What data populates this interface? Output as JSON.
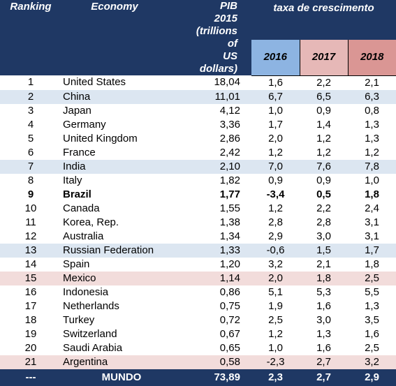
{
  "header": {
    "ranking": "Ranking",
    "economy": "Economy",
    "pib_line1": "PIB 2015",
    "pib_line2": "(trillions of",
    "pib_line3": "US dollars)",
    "growth": "taxa de crescimento",
    "years": [
      "2016",
      "2017",
      "2018"
    ]
  },
  "colors": {
    "header_bg": "#1f3864",
    "y2016": "#8db4e2",
    "y2017": "#e6b8b7",
    "y2018": "#da9694",
    "row_blue": "#dce6f1",
    "row_pink": "#f2dcdb"
  },
  "rows": [
    {
      "rank": "1",
      "economy": "United States",
      "pib": "18,04",
      "g2016": "1,6",
      "g2017": "2,2",
      "g2018": "2,1",
      "style": ""
    },
    {
      "rank": "2",
      "economy": "China",
      "pib": "11,01",
      "g2016": "6,7",
      "g2017": "6,5",
      "g2018": "6,3",
      "style": "blue"
    },
    {
      "rank": "3",
      "economy": "Japan",
      "pib": "4,12",
      "g2016": "1,0",
      "g2017": "0,9",
      "g2018": "0,8",
      "style": ""
    },
    {
      "rank": "4",
      "economy": "Germany",
      "pib": "3,36",
      "g2016": "1,7",
      "g2017": "1,4",
      "g2018": "1,3",
      "style": ""
    },
    {
      "rank": "5",
      "economy": "United Kingdom",
      "pib": "2,86",
      "g2016": "2,0",
      "g2017": "1,2",
      "g2018": "1,3",
      "style": ""
    },
    {
      "rank": "6",
      "economy": "France",
      "pib": "2,42",
      "g2016": "1,2",
      "g2017": "1,2",
      "g2018": "1,2",
      "style": ""
    },
    {
      "rank": "7",
      "economy": "India",
      "pib": "2,10",
      "g2016": "7,0",
      "g2017": "7,6",
      "g2018": "7,8",
      "style": "blue"
    },
    {
      "rank": "8",
      "economy": "Italy",
      "pib": "1,82",
      "g2016": "0,9",
      "g2017": "0,9",
      "g2018": "1,0",
      "style": ""
    },
    {
      "rank": "9",
      "economy": "Brazil",
      "pib": "1,77",
      "g2016": "-3,4",
      "g2017": "0,5",
      "g2018": "1,8",
      "style": "bold"
    },
    {
      "rank": "10",
      "economy": "Canada",
      "pib": "1,55",
      "g2016": "1,2",
      "g2017": "2,2",
      "g2018": "2,4",
      "style": ""
    },
    {
      "rank": "11",
      "economy": "Korea, Rep.",
      "pib": "1,38",
      "g2016": "2,8",
      "g2017": "2,8",
      "g2018": "3,1",
      "style": ""
    },
    {
      "rank": "12",
      "economy": "Australia",
      "pib": "1,34",
      "g2016": "2,9",
      "g2017": "3,0",
      "g2018": "3,1",
      "style": ""
    },
    {
      "rank": "13",
      "economy": "Russian Federation",
      "pib": "1,33",
      "g2016": "-0,6",
      "g2017": "1,5",
      "g2018": "1,7",
      "style": "blue"
    },
    {
      "rank": "14",
      "economy": "Spain",
      "pib": "1,20",
      "g2016": "3,2",
      "g2017": "2,1",
      "g2018": "1,8",
      "style": ""
    },
    {
      "rank": "15",
      "economy": "Mexico",
      "pib": "1,14",
      "g2016": "2,0",
      "g2017": "1,8",
      "g2018": "2,5",
      "style": "pink"
    },
    {
      "rank": "16",
      "economy": "Indonesia",
      "pib": "0,86",
      "g2016": "5,1",
      "g2017": "5,3",
      "g2018": "5,5",
      "style": ""
    },
    {
      "rank": "17",
      "economy": "Netherlands",
      "pib": "0,75",
      "g2016": "1,9",
      "g2017": "1,6",
      "g2018": "1,3",
      "style": ""
    },
    {
      "rank": "18",
      "economy": "Turkey",
      "pib": "0,72",
      "g2016": "2,5",
      "g2017": "3,0",
      "g2018": "3,5",
      "style": ""
    },
    {
      "rank": "19",
      "economy": "Switzerland",
      "pib": "0,67",
      "g2016": "1,2",
      "g2017": "1,3",
      "g2018": "1,6",
      "style": ""
    },
    {
      "rank": "20",
      "economy": "Saudi Arabia",
      "pib": "0,65",
      "g2016": "1,0",
      "g2017": "1,6",
      "g2018": "2,5",
      "style": ""
    },
    {
      "rank": "21",
      "economy": "Argentina",
      "pib": "0,58",
      "g2016": "-2,3",
      "g2017": "2,7",
      "g2018": "3,2",
      "style": "pink"
    }
  ],
  "footer": {
    "rank": "---",
    "economy": "MUNDO",
    "pib": "73,89",
    "g2016": "2,3",
    "g2017": "2,7",
    "g2018": "2,9"
  }
}
